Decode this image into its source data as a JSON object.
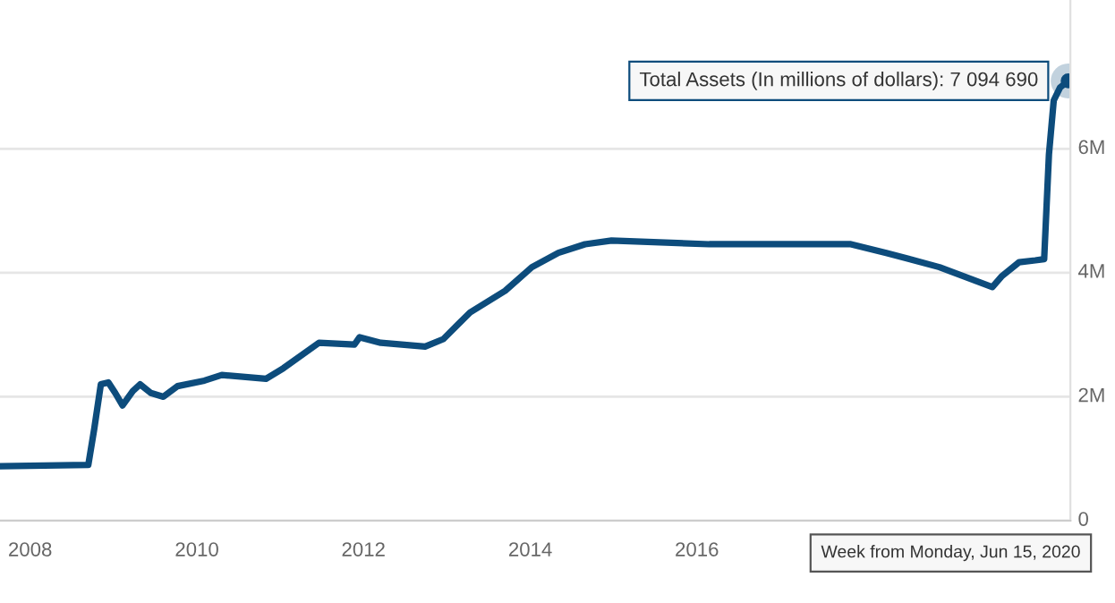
{
  "chart_data": {
    "type": "line",
    "x": [
      "2007-08-22",
      "2008-09-12",
      "2008-10-08",
      "2008-11-06",
      "2008-12-09",
      "2009-01-08",
      "2009-02-09",
      "2009-03-26",
      "2009-04-27",
      "2009-06-13",
      "2009-08-07",
      "2009-10-08",
      "2010-02-03",
      "2010-04-20",
      "2010-10-31",
      "2011-01-15",
      "2011-06-20",
      "2011-11-22",
      "2011-12-15",
      "2012-03-17",
      "2012-09-27",
      "2012-12-16",
      "2013-04-12",
      "2013-09-13",
      "2014-01-08",
      "2014-05-04",
      "2014-08-29",
      "2014-12-23",
      "2016-02-24",
      "2017-11-06",
      "2018-04-10",
      "2018-11-29",
      "2019-07-19",
      "2019-08-28",
      "2019-11-13",
      "2020-01-23",
      "2020-03-02",
      "2020-03-23",
      "2020-04-13",
      "2020-05-11",
      "2020-06-15"
    ],
    "series": [
      {
        "color": "#0d4c7c",
        "values": [
          880000,
          900000,
          1480000,
          2200000,
          2230000,
          2060000,
          1860000,
          2090000,
          2200000,
          2060000,
          2000000,
          2170000,
          2260000,
          2350000,
          2290000,
          2460000,
          2870000,
          2840000,
          2960000,
          2870000,
          2810000,
          2930000,
          3360000,
          3710000,
          4090000,
          4320000,
          4460000,
          4520000,
          4460000,
          4460000,
          4320000,
          4090000,
          3770000,
          3940000,
          4170000,
          4200000,
          4220000,
          5910000,
          6780000,
          6990000,
          7094690
        ]
      }
    ],
    "xlim": [
      "2007-08-22",
      "2020-06-25"
    ],
    "xticks": [
      {
        "value": "2008-01-01",
        "label": "2008"
      },
      {
        "value": "2010-01-01",
        "label": "2010"
      },
      {
        "value": "2012-01-01",
        "label": "2012"
      },
      {
        "value": "2014-01-01",
        "label": "2014"
      },
      {
        "value": "2016-01-01",
        "label": "2016"
      }
    ],
    "ylim": [
      0,
      8400000
    ],
    "yticks": [
      {
        "value": 0,
        "label": "0"
      },
      {
        "value": 2000000,
        "label": "2M"
      },
      {
        "value": 4000000,
        "label": "4M"
      },
      {
        "value": 6000000,
        "label": "6M"
      }
    ],
    "grid": "y",
    "legend": false,
    "marker": "none",
    "line_style": "solid",
    "annotations": [
      {
        "text": "Total Assets (In millions of dollars): 7 094 690",
        "x": "2020-06-15",
        "y": 7094690
      },
      "Week from Monday, Jun 15, 2020"
    ]
  }
}
